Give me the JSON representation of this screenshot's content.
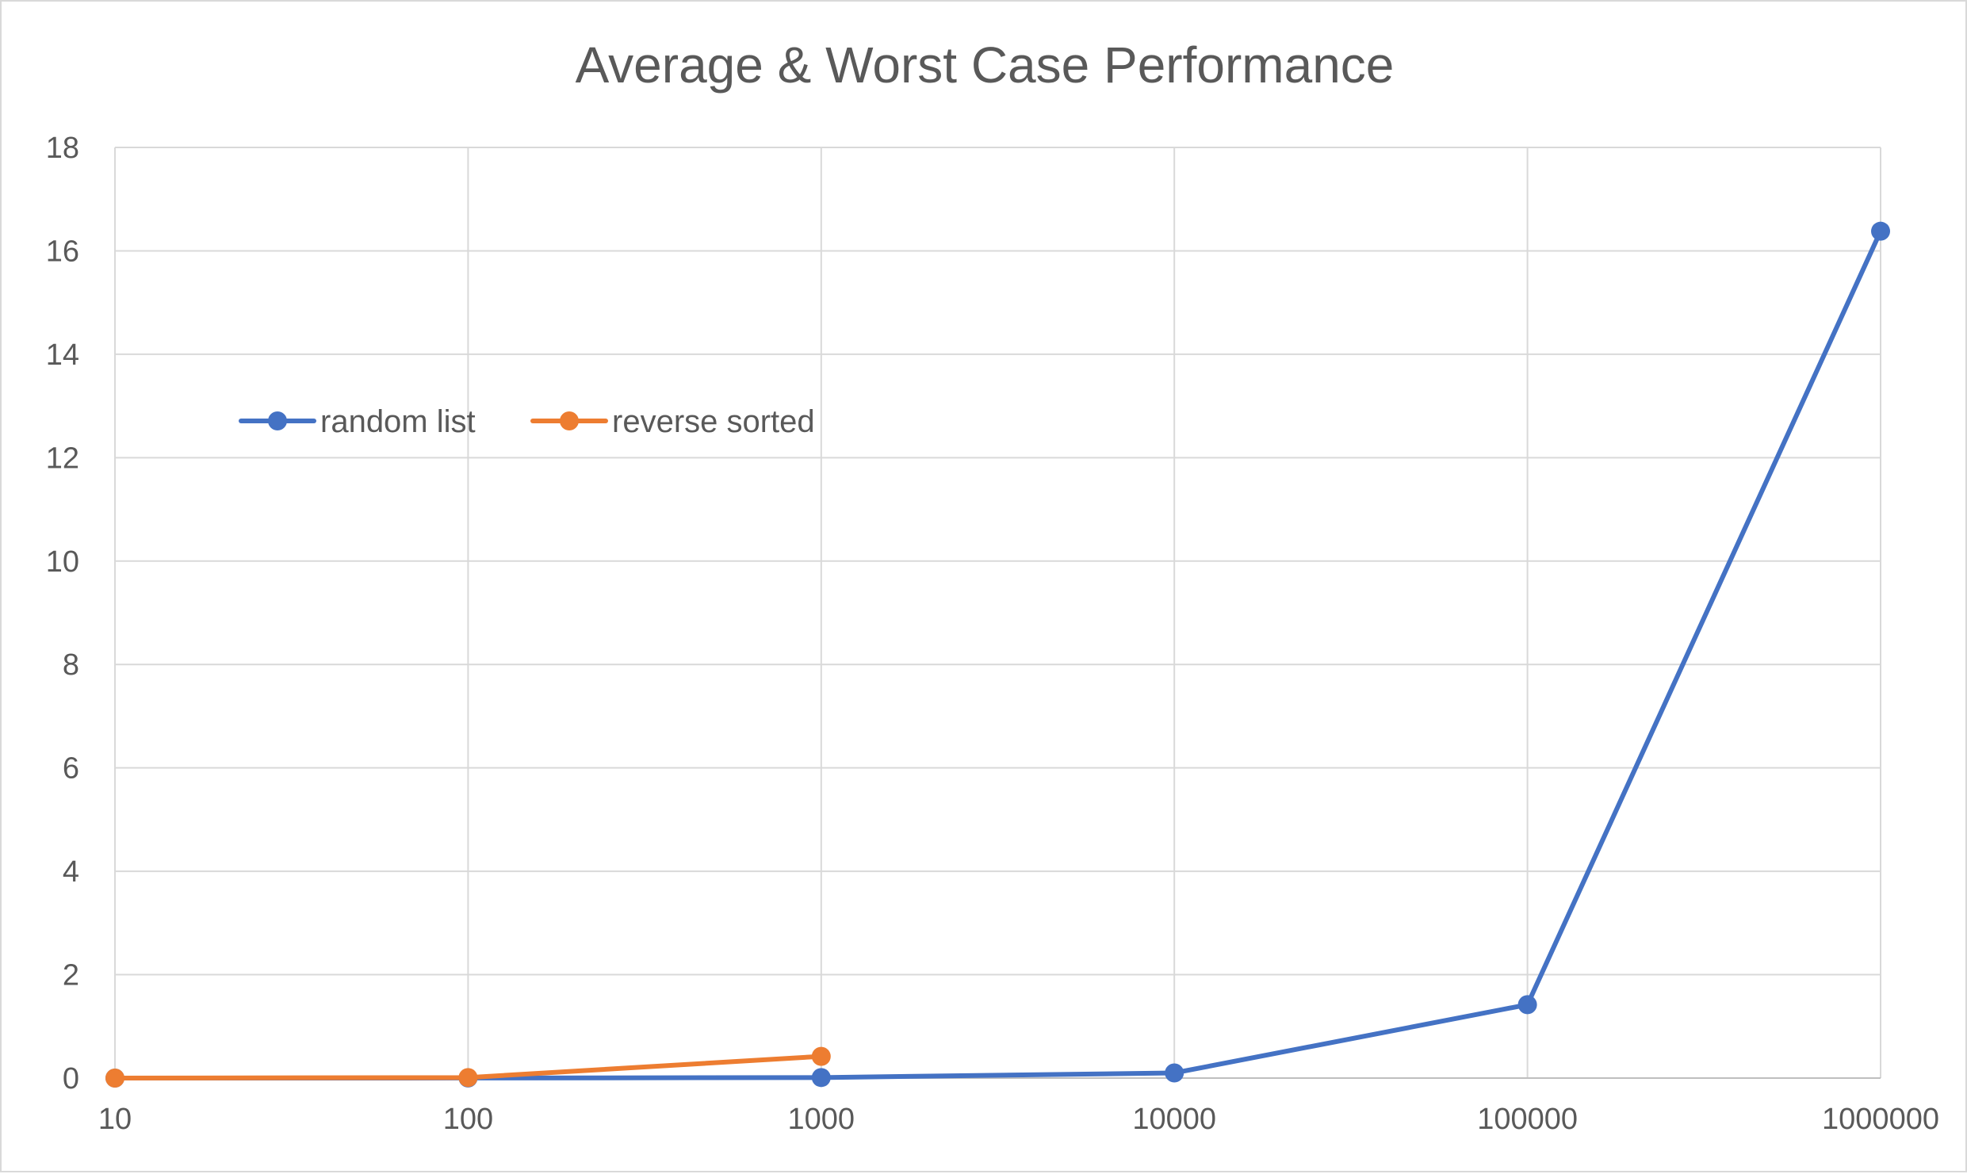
{
  "chart_data": {
    "type": "line",
    "title": "Average & Worst Case Performance",
    "xlabel": "",
    "ylabel": "",
    "x_scale": "log",
    "categories": [
      "10",
      "100",
      "1000",
      "10000",
      "100000",
      "1000000"
    ],
    "x": [
      10,
      100,
      1000,
      10000,
      100000,
      1000000
    ],
    "ylim": [
      0,
      18
    ],
    "yticks": [
      0,
      2,
      4,
      6,
      8,
      10,
      12,
      14,
      16,
      18
    ],
    "grid": true,
    "legend_position": "top-left",
    "series": [
      {
        "name": "random list",
        "color": "#4472C4",
        "values": [
          0.0,
          0.001,
          0.01,
          0.1,
          1.42,
          16.38
        ]
      },
      {
        "name": "reverse sorted",
        "color": "#ED7D31",
        "values": [
          0.0,
          0.01,
          0.42,
          null,
          null,
          null
        ]
      }
    ]
  }
}
